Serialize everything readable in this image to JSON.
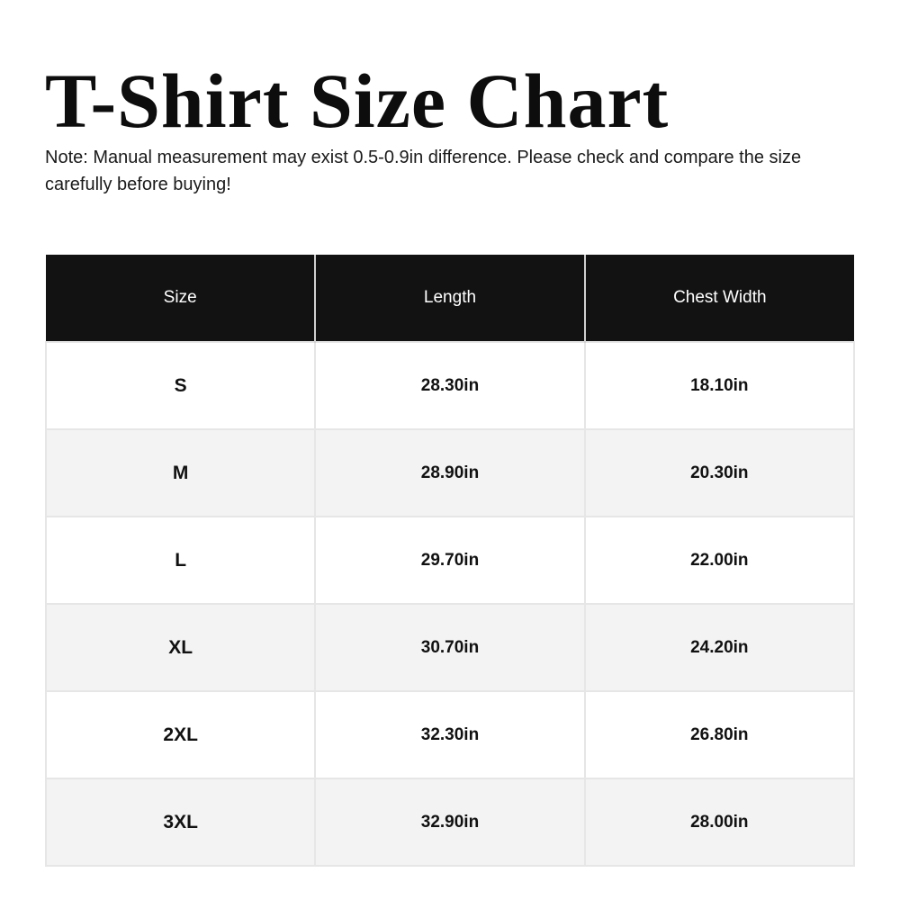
{
  "title": "T-Shirt Size Chart",
  "note": "Note: Manual measurement may exist 0.5-0.9in difference. Please check and compare the size carefully before buying!",
  "table": {
    "headers": [
      "Size",
      "Length",
      "Chest Width"
    ],
    "rows": [
      [
        "S",
        "28.30in",
        "18.10in"
      ],
      [
        "M",
        "28.90in",
        "20.30in"
      ],
      [
        "L",
        "29.70in",
        "22.00in"
      ],
      [
        "XL",
        "30.70in",
        "24.20in"
      ],
      [
        "2XL",
        "32.30in",
        "26.80in"
      ],
      [
        "3XL",
        "32.90in",
        "28.00in"
      ]
    ]
  },
  "colors": {
    "header_bg": "#121212",
    "alt_row_bg": "#f3f3f3"
  }
}
